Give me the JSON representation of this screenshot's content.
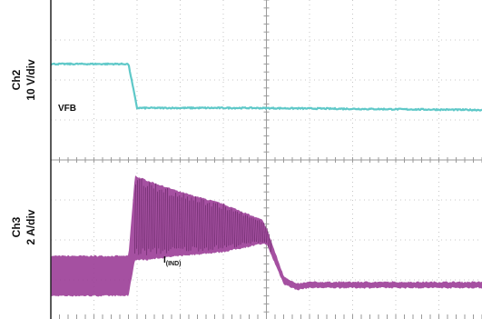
{
  "chart_data": {
    "type": "line",
    "title": "",
    "grid": true,
    "divisions": {
      "x": 10,
      "y": 8
    },
    "channels": [
      {
        "id": "ch2",
        "label_line1": "Ch2",
        "label_line2": "10 V/div",
        "trace_name": "VFB",
        "color": "#5ec8c8"
      },
      {
        "id": "ch3",
        "label_line1": "Ch3",
        "label_line2": "2 A/div",
        "trace_name_main": "I",
        "trace_name_sub": "(IND)",
        "color": "#9b3d97"
      }
    ],
    "series": [
      {
        "name": "VFB",
        "x": [
          0,
          1.8,
          2.0,
          4.5,
          10
        ],
        "y": [
          6.4,
          6.4,
          5.3,
          5.3,
          5.25
        ]
      },
      {
        "name": "I(IND) envelope",
        "x": [
          0,
          1.8,
          1.95,
          2.2,
          3.0,
          4.0,
          4.9,
          5.0,
          5.4,
          5.7,
          6.0,
          10
        ],
        "y_high": [
          1.6,
          1.6,
          3.6,
          3.5,
          3.2,
          2.9,
          2.5,
          2.3,
          1.1,
          0.9,
          0.95,
          0.95
        ],
        "y_low": [
          0.6,
          0.6,
          1.5,
          1.5,
          1.6,
          1.7,
          1.9,
          1.9,
          0.9,
          0.75,
          0.8,
          0.8
        ]
      }
    ],
    "colors": {
      "grid": "#b9b9b9",
      "frame": "#222222",
      "background": "#ffffff"
    }
  }
}
